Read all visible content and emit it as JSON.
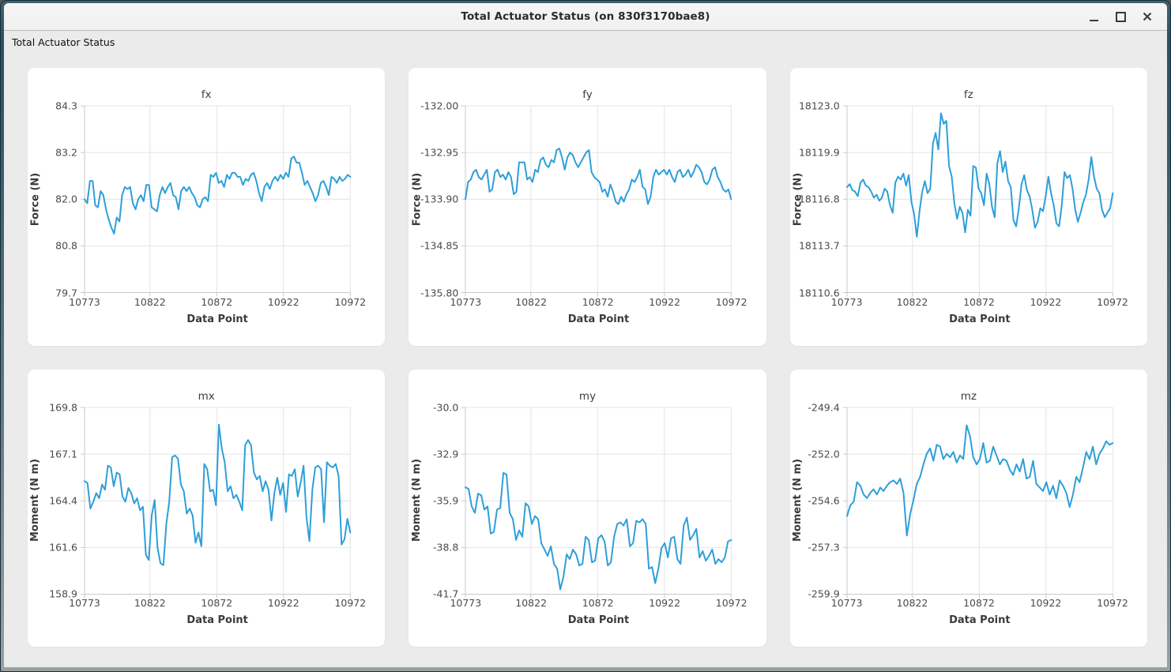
{
  "window": {
    "title": "Total Actuator Status (on 830f3170bae8)",
    "controls": [
      {
        "name": "minimize",
        "icon": "minimize-icon"
      },
      {
        "name": "maximize",
        "icon": "maximize-icon"
      },
      {
        "name": "close",
        "icon": "close-icon"
      }
    ]
  },
  "dock": {
    "title": "Total Actuator Status"
  },
  "colors": {
    "line": "#2E9FD9",
    "card_bg": "#ffffff",
    "window_bg": "#ebebeb",
    "grid_line": "#e4e4e4",
    "axis_line": "#c9c9c9",
    "tick_text": "#4a4a4a"
  },
  "chart_data": [
    {
      "type": "line",
      "title": "fx",
      "xlabel": "Data Point",
      "ylabel": "Force (N)",
      "xlim": [
        10773,
        10972
      ],
      "ylim": [
        79.7,
        84.3
      ],
      "xticks": [
        10773,
        10822,
        10872,
        10922,
        10972
      ],
      "yticks": [
        "84.3",
        "83.2",
        "82.0",
        "80.8",
        "79.7"
      ],
      "grid": true,
      "legend": false,
      "values": [
        82.0,
        81.9,
        82.45,
        82.45,
        81.85,
        81.8,
        82.2,
        82.1,
        81.75,
        81.5,
        81.3,
        81.15,
        81.55,
        81.45,
        82.1,
        82.3,
        82.25,
        82.3,
        81.9,
        81.75,
        82.0,
        82.1,
        81.95,
        82.35,
        82.35,
        81.8,
        81.75,
        81.7,
        82.1,
        82.3,
        82.15,
        82.3,
        82.4,
        82.1,
        82.05,
        81.75,
        82.2,
        82.3,
        82.2,
        82.3,
        82.15,
        82.05,
        81.85,
        81.8,
        82.0,
        82.05,
        81.95,
        82.6,
        82.55,
        82.65,
        82.4,
        82.45,
        82.3,
        82.6,
        82.5,
        82.65,
        82.65,
        82.55,
        82.55,
        82.35,
        82.5,
        82.45,
        82.6,
        82.65,
        82.45,
        82.15,
        81.95,
        82.3,
        82.4,
        82.25,
        82.45,
        82.55,
        82.45,
        82.6,
        82.5,
        82.65,
        82.55,
        83.0,
        83.05,
        82.9,
        82.9,
        82.65,
        82.35,
        82.45,
        82.3,
        82.15,
        81.95,
        82.1,
        82.4,
        82.45,
        82.3,
        82.1,
        82.55,
        82.5,
        82.4,
        82.55,
        82.45,
        82.5,
        82.6,
        82.55
      ]
    },
    {
      "type": "line",
      "title": "fy",
      "xlabel": "Data Point",
      "ylabel": "Force (N)",
      "xlim": [
        10773,
        10972
      ],
      "ylim": [
        -135.8,
        -132.0
      ],
      "xticks": [
        10773,
        10822,
        10872,
        10922,
        10972
      ],
      "yticks": [
        "-132.00",
        "-132.95",
        "-133.90",
        "-134.85",
        "-135.80"
      ],
      "grid": true,
      "legend": false,
      "values": [
        -133.9,
        -133.55,
        -133.5,
        -133.35,
        -133.3,
        -133.45,
        -133.5,
        -133.4,
        -133.3,
        -133.75,
        -133.7,
        -133.35,
        -133.3,
        -133.45,
        -133.4,
        -133.5,
        -133.35,
        -133.45,
        -133.8,
        -133.75,
        -133.15,
        -133.15,
        -133.15,
        -133.5,
        -133.45,
        -133.55,
        -133.3,
        -133.35,
        -133.1,
        -133.05,
        -133.2,
        -133.25,
        -133.1,
        -133.15,
        -132.9,
        -132.87,
        -133.05,
        -133.3,
        -133.05,
        -132.95,
        -133.0,
        -133.15,
        -133.25,
        -133.15,
        -133.05,
        -132.95,
        -132.9,
        -133.35,
        -133.45,
        -133.5,
        -133.55,
        -133.75,
        -133.7,
        -133.85,
        -133.6,
        -133.75,
        -133.95,
        -134.0,
        -133.85,
        -133.95,
        -133.8,
        -133.7,
        -133.5,
        -133.55,
        -133.45,
        -133.3,
        -133.65,
        -133.7,
        -134.0,
        -133.85,
        -133.45,
        -133.3,
        -133.4,
        -133.35,
        -133.3,
        -133.4,
        -133.3,
        -133.45,
        -133.55,
        -133.35,
        -133.3,
        -133.45,
        -133.4,
        -133.3,
        -133.45,
        -133.35,
        -133.2,
        -133.25,
        -133.35,
        -133.55,
        -133.6,
        -133.5,
        -133.3,
        -133.25,
        -133.45,
        -133.55,
        -133.7,
        -133.75,
        -133.7,
        -133.9
      ]
    },
    {
      "type": "line",
      "title": "fz",
      "xlabel": "Data Point",
      "ylabel": "Force (N)",
      "xlim": [
        10773,
        10972
      ],
      "ylim": [
        18110.6,
        18123.0
      ],
      "xticks": [
        10773,
        10822,
        10872,
        10922,
        10972
      ],
      "yticks": [
        "18123.0",
        "18119.9",
        "18116.8",
        "18113.7",
        "18110.6"
      ],
      "grid": true,
      "legend": false,
      "values": [
        18117.6,
        18117.8,
        18117.4,
        18117.3,
        18117.0,
        18117.9,
        18118.1,
        18117.7,
        18117.6,
        18117.3,
        18116.9,
        18117.1,
        18116.7,
        18116.9,
        18117.5,
        18117.3,
        18116.4,
        18115.9,
        18117.9,
        18118.3,
        18118.1,
        18118.5,
        18117.7,
        18118.4,
        18116.6,
        18115.8,
        18114.3,
        18116.0,
        18117.3,
        18118.0,
        18117.2,
        18117.5,
        18120.5,
        18121.2,
        18120.1,
        18122.5,
        18121.8,
        18122.0,
        18119.0,
        18118.3,
        18116.5,
        18115.5,
        18116.3,
        18115.9,
        18114.6,
        18116.1,
        18115.7,
        18119.0,
        18118.9,
        18117.5,
        18117.2,
        18116.4,
        18118.5,
        18117.8,
        18116.3,
        18115.6,
        18119.2,
        18120.0,
        18118.6,
        18119.3,
        18118.0,
        18117.6,
        18115.4,
        18115.0,
        18116.2,
        18117.8,
        18118.4,
        18117.4,
        18117.0,
        18116.1,
        18114.9,
        18115.3,
        18116.2,
        18116.0,
        18117.0,
        18118.3,
        18117.2,
        18116.4,
        18115.2,
        18115.0,
        18116.4,
        18118.6,
        18118.2,
        18118.4,
        18117.5,
        18116.1,
        18115.3,
        18115.9,
        18116.6,
        18117.1,
        18118.1,
        18119.6,
        18118.3,
        18117.5,
        18117.2,
        18116.1,
        18115.6,
        18115.9,
        18116.2,
        18117.2
      ]
    },
    {
      "type": "line",
      "title": "mx",
      "xlabel": "Data Point",
      "ylabel": "Moment (N m)",
      "xlim": [
        10773,
        10972
      ],
      "ylim": [
        158.9,
        169.8
      ],
      "xticks": [
        10773,
        10822,
        10872,
        10922,
        10972
      ],
      "yticks": [
        "169.8",
        "167.1",
        "164.4",
        "161.6",
        "158.9"
      ],
      "grid": true,
      "legend": false,
      "values": [
        165.5,
        165.4,
        163.9,
        164.3,
        164.8,
        164.5,
        165.3,
        165.0,
        166.4,
        166.3,
        165.2,
        166.0,
        165.9,
        164.6,
        164.3,
        165.1,
        164.8,
        164.2,
        164.5,
        163.8,
        164.0,
        161.2,
        160.9,
        163.5,
        164.4,
        161.6,
        160.7,
        160.6,
        163.0,
        164.3,
        166.9,
        167.0,
        166.8,
        165.3,
        164.9,
        163.6,
        163.9,
        163.5,
        161.9,
        162.5,
        161.7,
        166.5,
        166.2,
        164.9,
        165.0,
        164.1,
        168.8,
        167.4,
        166.6,
        164.9,
        165.2,
        164.5,
        164.7,
        164.3,
        163.8,
        167.6,
        167.9,
        167.6,
        166.0,
        165.6,
        165.8,
        164.9,
        165.5,
        165.0,
        163.2,
        164.8,
        165.7,
        164.7,
        165.4,
        163.7,
        165.9,
        165.8,
        166.2,
        164.6,
        165.4,
        166.4,
        163.4,
        162.0,
        165.0,
        166.3,
        166.4,
        166.2,
        163.1,
        166.6,
        166.4,
        166.3,
        166.5,
        165.8,
        161.8,
        162.1,
        163.3,
        162.5
      ]
    },
    {
      "type": "line",
      "title": "my",
      "xlabel": "Data Point",
      "ylabel": "Moment (N m)",
      "xlim": [
        10773,
        10972
      ],
      "ylim": [
        -41.7,
        -30.0
      ],
      "xticks": [
        10773,
        10822,
        10872,
        10922,
        10972
      ],
      "yticks": [
        "-30.0",
        "-32.9",
        "-35.9",
        "-38.8",
        "-41.7"
      ],
      "grid": true,
      "legend": false,
      "values": [
        -35.0,
        -35.1,
        -36.2,
        -36.6,
        -35.4,
        -35.5,
        -36.4,
        -36.2,
        -37.9,
        -37.8,
        -36.4,
        -36.3,
        -34.1,
        -34.2,
        -36.6,
        -37.0,
        -38.3,
        -37.7,
        -38.1,
        -36.0,
        -36.2,
        -37.3,
        -36.8,
        -37.0,
        -38.5,
        -38.9,
        -39.3,
        -38.7,
        -39.8,
        -40.1,
        -41.4,
        -40.6,
        -39.2,
        -39.5,
        -38.9,
        -39.2,
        -39.9,
        -39.8,
        -38.1,
        -38.3,
        -39.7,
        -39.6,
        -38.2,
        -38.0,
        -38.4,
        -39.9,
        -39.7,
        -38.1,
        -37.3,
        -37.2,
        -37.4,
        -37.0,
        -38.7,
        -38.5,
        -37.1,
        -37.2,
        -37.0,
        -37.3,
        -40.1,
        -40.0,
        -41.0,
        -40.1,
        -38.8,
        -38.5,
        -39.4,
        -38.2,
        -38.1,
        -39.5,
        -39.8,
        -37.4,
        -36.9,
        -38.3,
        -38.0,
        -37.6,
        -39.4,
        -39.0,
        -39.6,
        -39.3,
        -38.9,
        -39.8,
        -39.5,
        -39.7,
        -39.4,
        -38.4,
        -38.3
      ]
    },
    {
      "type": "line",
      "title": "mz",
      "xlabel": "Data Point",
      "ylabel": "Moment (N m)",
      "xlim": [
        10773,
        10972
      ],
      "ylim": [
        -259.9,
        -249.4
      ],
      "xticks": [
        10773,
        10822,
        10872,
        10922,
        10972
      ],
      "yticks": [
        "-249.4",
        "-252.0",
        "-254.6",
        "-257.3",
        "-259.9"
      ],
      "grid": true,
      "legend": false,
      "values": [
        -255.5,
        -254.9,
        -254.7,
        -253.6,
        -253.8,
        -254.3,
        -254.5,
        -254.2,
        -254.0,
        -254.3,
        -253.9,
        -254.1,
        -253.8,
        -253.6,
        -253.5,
        -253.7,
        -253.4,
        -254.2,
        -256.6,
        -255.4,
        -254.6,
        -253.7,
        -253.3,
        -252.6,
        -252.0,
        -251.7,
        -252.4,
        -251.5,
        -251.6,
        -252.3,
        -252.0,
        -252.2,
        -251.9,
        -252.5,
        -252.1,
        -252.3,
        -250.4,
        -251.0,
        -252.2,
        -252.6,
        -252.3,
        -251.4,
        -252.5,
        -252.4,
        -251.6,
        -252.1,
        -252.6,
        -252.3,
        -252.4,
        -252.9,
        -253.2,
        -252.6,
        -253.0,
        -252.3,
        -253.4,
        -253.3,
        -252.4,
        -253.7,
        -253.9,
        -254.1,
        -253.6,
        -254.3,
        -253.8,
        -254.5,
        -253.5,
        -253.8,
        -254.2,
        -255.0,
        -254.3,
        -253.3,
        -253.6,
        -252.8,
        -251.9,
        -252.3,
        -251.6,
        -252.6,
        -252.0,
        -251.7,
        -251.3,
        -251.5,
        -251.4
      ]
    }
  ]
}
